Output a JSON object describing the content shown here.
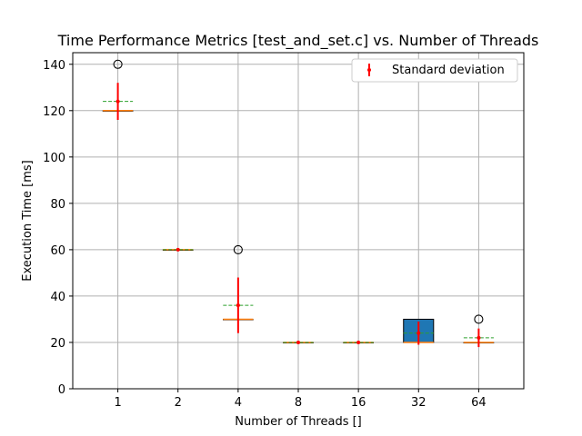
{
  "chart_data": {
    "type": "box",
    "title": "Time Performance Metrics [test_and_set.c] vs. Number of Threads",
    "xlabel": "Number of Threads []",
    "ylabel": "Execution Time [ms]",
    "categories": [
      "1",
      "2",
      "4",
      "8",
      "16",
      "32",
      "64"
    ],
    "ylim": [
      0,
      145
    ],
    "yticks": [
      0,
      20,
      40,
      60,
      80,
      100,
      120,
      140
    ],
    "grid": true,
    "legend": {
      "position": "top-right",
      "entries": [
        "Standard deviation"
      ]
    },
    "boxes": [
      {
        "category": "1",
        "q1": 120,
        "median": 120,
        "q3": 120,
        "whisker_low": 120,
        "whisker_high": 120,
        "mean": 124,
        "std": 8,
        "outliers": [
          140
        ]
      },
      {
        "category": "2",
        "q1": 60,
        "median": 60,
        "q3": 60,
        "whisker_low": 60,
        "whisker_high": 60,
        "mean": 60,
        "std": 0,
        "outliers": []
      },
      {
        "category": "4",
        "q1": 30,
        "median": 30,
        "q3": 30,
        "whisker_low": 30,
        "whisker_high": 30,
        "mean": 36,
        "std": 12,
        "outliers": [
          60
        ]
      },
      {
        "category": "8",
        "q1": 20,
        "median": 20,
        "q3": 20,
        "whisker_low": 20,
        "whisker_high": 20,
        "mean": 20,
        "std": 0,
        "outliers": []
      },
      {
        "category": "16",
        "q1": 20,
        "median": 20,
        "q3": 20,
        "whisker_low": 20,
        "whisker_high": 20,
        "mean": 20,
        "std": 0,
        "outliers": []
      },
      {
        "category": "32",
        "q1": 20,
        "median": 20,
        "q3": 30,
        "whisker_low": 20,
        "whisker_high": 30,
        "mean": 24,
        "std": 5,
        "outliers": [],
        "filled": true
      },
      {
        "category": "64",
        "q1": 20,
        "median": 20,
        "q3": 20,
        "whisker_low": 20,
        "whisker_high": 20,
        "mean": 22,
        "std": 4,
        "outliers": [
          30
        ]
      }
    ],
    "colors": {
      "box_fill": "#1f77b4",
      "median": "#ff7f0e",
      "mean_line": "#2ca02c",
      "std_error": "#ff0000",
      "grid": "#b0b0b0"
    }
  }
}
